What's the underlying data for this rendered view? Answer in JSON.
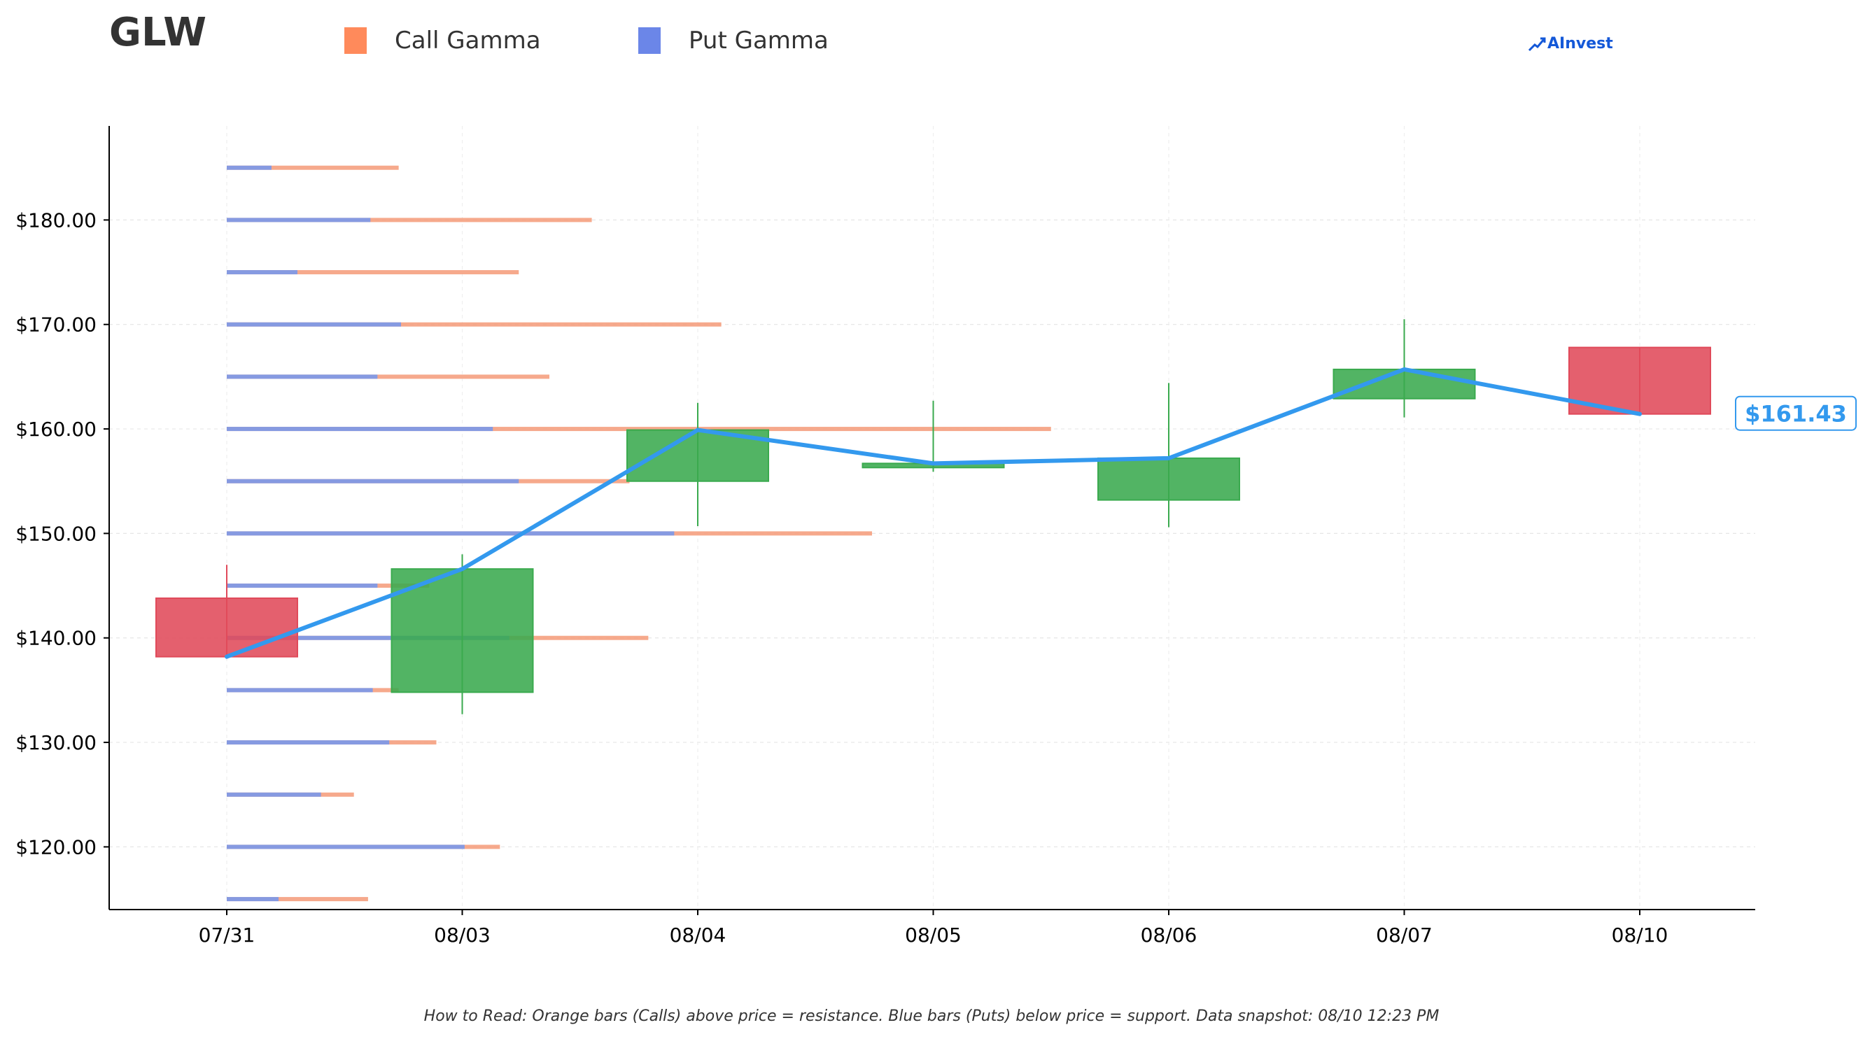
{
  "header": {
    "ticker": "GLW",
    "brand": "AInvest"
  },
  "legend": [
    {
      "label": "Call Gamma",
      "color": "#ff8a5b"
    },
    {
      "label": "Put Gamma",
      "color": "#6b86e8"
    }
  ],
  "footnote": "How to Read: Orange bars (Calls) above price = resistance. Blue bars (Puts) below price = support. Data snapshot: 08/10 12:23 PM",
  "chart_data": {
    "type": "candlestick",
    "categories": [
      "07/31",
      "08/03",
      "08/04",
      "08/05",
      "08/06",
      "08/07",
      "08/10"
    ],
    "ylim": [
      114,
      189
    ],
    "y_ticks": [
      120,
      130,
      140,
      150,
      160,
      170,
      180
    ],
    "y_tick_labels": [
      "$120.00",
      "$130.00",
      "$140.00",
      "$150.00",
      "$160.00",
      "$170.00",
      "$180.00"
    ],
    "grid": true,
    "colors": {
      "up": "#3aaa4e",
      "down": "#e04a5a",
      "price_line": "#3399ee",
      "call": "#f5a080",
      "put": "#8099e6"
    },
    "candles": [
      {
        "open": 143.8,
        "high": 147.0,
        "low": 138.0,
        "close": 138.2
      },
      {
        "open": 134.8,
        "high": 148.0,
        "low": 132.7,
        "close": 146.6
      },
      {
        "open": 155.0,
        "high": 162.5,
        "low": 150.7,
        "close": 159.9
      },
      {
        "open": 156.3,
        "high": 162.7,
        "low": 155.9,
        "close": 156.7
      },
      {
        "open": 153.2,
        "high": 164.4,
        "low": 150.6,
        "close": 157.2
      },
      {
        "open": 162.9,
        "high": 170.5,
        "low": 161.1,
        "close": 165.7
      },
      {
        "open": 167.8,
        "high": 167.8,
        "low": 161.4,
        "close": 161.43
      }
    ],
    "price_line": [
      138.2,
      146.6,
      159.9,
      156.7,
      157.2,
      165.7,
      161.43
    ],
    "last_price_label": "$161.43",
    "gamma_profile": {
      "strikes": [
        115,
        120,
        125,
        130,
        135,
        140,
        145,
        150,
        155,
        160,
        165,
        170,
        175,
        180,
        185
      ],
      "put_gamma": [
        0.22,
        1.01,
        0.4,
        0.69,
        0.62,
        1.2,
        0.64,
        1.9,
        1.24,
        1.13,
        0.64,
        0.74,
        0.3,
        0.61,
        0.19
      ],
      "total_gamma": [
        0.6,
        1.16,
        0.54,
        0.89,
        0.73,
        1.79,
        0.86,
        2.74,
        1.71,
        3.5,
        1.37,
        2.1,
        1.24,
        1.55,
        0.73
      ]
    }
  }
}
